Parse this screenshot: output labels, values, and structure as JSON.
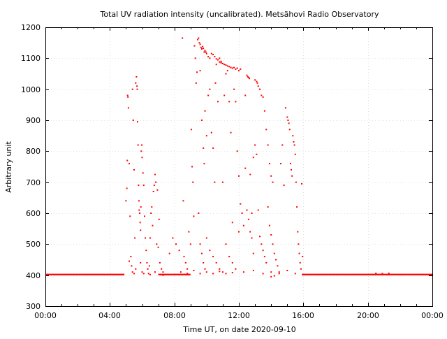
{
  "chart_data": {
    "type": "scatter",
    "title": "Total UV radiation intensity (uncalibrated). Metsähovi Radio Observatory",
    "xlabel": "Time UT, on date 2020-09-10",
    "ylabel": "Arbitrary unit",
    "xlim": [
      "00:00",
      "24:00"
    ],
    "ylim": [
      300,
      1200
    ],
    "grid": true,
    "marker_color": "#ff0000",
    "x_ticks": [
      "00:00",
      "04:00",
      "08:00",
      "12:00",
      "16:00",
      "20:00",
      "00:00"
    ],
    "x_tick_hours": [
      0,
      4,
      8,
      12,
      16,
      20,
      24
    ],
    "y_ticks": [
      "300",
      "400",
      "500",
      "600",
      "700",
      "800",
      "900",
      "1000",
      "1100",
      "1200"
    ],
    "y_tick_values": [
      300,
      400,
      500,
      600,
      700,
      800,
      900,
      1000,
      1100,
      1200
    ],
    "baseline": {
      "value": 402,
      "segments": [
        [
          0.0,
          4.9
        ],
        [
          7.0,
          9.0
        ],
        [
          15.9,
          24.0
        ]
      ]
    },
    "points": [
      [
        5.0,
        640
      ],
      [
        5.05,
        680
      ],
      [
        5.08,
        770
      ],
      [
        5.1,
        980
      ],
      [
        5.12,
        975
      ],
      [
        5.15,
        940
      ],
      [
        5.2,
        760
      ],
      [
        5.25,
        590
      ],
      [
        5.3,
        460
      ],
      [
        5.35,
        430
      ],
      [
        5.4,
        1000
      ],
      [
        5.45,
        900
      ],
      [
        5.5,
        740
      ],
      [
        5.55,
        520
      ],
      [
        5.6,
        1020
      ],
      [
        5.65,
        1040
      ],
      [
        5.68,
        1010
      ],
      [
        5.7,
        1000
      ],
      [
        5.72,
        895
      ],
      [
        5.75,
        820
      ],
      [
        5.78,
        690
      ],
      [
        5.8,
        640
      ],
      [
        5.82,
        610
      ],
      [
        5.85,
        600
      ],
      [
        5.88,
        570
      ],
      [
        5.9,
        545
      ],
      [
        5.92,
        620
      ],
      [
        5.95,
        800
      ],
      [
        5.98,
        820
      ],
      [
        6.0,
        780
      ],
      [
        6.05,
        730
      ],
      [
        6.1,
        690
      ],
      [
        6.15,
        590
      ],
      [
        6.2,
        520
      ],
      [
        6.25,
        480
      ],
      [
        6.3,
        440
      ],
      [
        6.35,
        420
      ],
      [
        6.4,
        405
      ],
      [
        6.5,
        520
      ],
      [
        6.55,
        600
      ],
      [
        6.6,
        620
      ],
      [
        6.65,
        560
      ],
      [
        6.7,
        670
      ],
      [
        6.75,
        690
      ],
      [
        6.8,
        725
      ],
      [
        6.85,
        700
      ],
      [
        6.9,
        500
      ],
      [
        6.95,
        675
      ],
      [
        7.0,
        490
      ],
      [
        7.1,
        440
      ],
      [
        7.2,
        420
      ],
      [
        7.3,
        410
      ],
      [
        5.2,
        445
      ],
      [
        5.4,
        410
      ],
      [
        5.6,
        420
      ],
      [
        5.9,
        440
      ],
      [
        6.1,
        405
      ],
      [
        6.45,
        430
      ],
      [
        6.8,
        410
      ],
      [
        7.05,
        580
      ],
      [
        7.3,
        400
      ],
      [
        7.7,
        470
      ],
      [
        7.9,
        520
      ],
      [
        8.1,
        500
      ],
      [
        8.3,
        480
      ],
      [
        8.5,
        1165
      ],
      [
        8.55,
        640
      ],
      [
        8.6,
        460
      ],
      [
        8.7,
        440
      ],
      [
        8.8,
        420
      ],
      [
        8.9,
        540
      ],
      [
        9.0,
        500
      ],
      [
        9.05,
        870
      ],
      [
        9.1,
        750
      ],
      [
        9.15,
        700
      ],
      [
        9.2,
        590
      ],
      [
        9.25,
        1140
      ],
      [
        9.3,
        1100
      ],
      [
        9.35,
        1020
      ],
      [
        9.4,
        1055
      ],
      [
        9.45,
        1160
      ],
      [
        9.5,
        1165
      ],
      [
        9.55,
        1150
      ],
      [
        9.6,
        1145
      ],
      [
        9.65,
        1135
      ],
      [
        9.7,
        1130
      ],
      [
        9.75,
        1138
      ],
      [
        9.8,
        1132
      ],
      [
        9.85,
        1120
      ],
      [
        9.9,
        1125
      ],
      [
        9.95,
        1120
      ],
      [
        10.0,
        1115
      ],
      [
        10.1,
        1105
      ],
      [
        10.2,
        1100
      ],
      [
        10.3,
        1115
      ],
      [
        10.4,
        1112
      ],
      [
        10.5,
        1105
      ],
      [
        10.6,
        1098
      ],
      [
        10.7,
        1095
      ],
      [
        10.8,
        1088
      ],
      [
        10.9,
        1085
      ],
      [
        11.0,
        1083
      ],
      [
        11.1,
        1080
      ],
      [
        11.2,
        1078
      ],
      [
        11.3,
        1075
      ],
      [
        11.4,
        1073
      ],
      [
        11.5,
        1070
      ],
      [
        11.6,
        1068
      ],
      [
        11.7,
        1070
      ],
      [
        11.8,
        1065
      ],
      [
        11.9,
        1068
      ],
      [
        12.0,
        1060
      ],
      [
        12.1,
        1065
      ],
      [
        9.6,
        1060
      ],
      [
        9.7,
        900
      ],
      [
        9.8,
        810
      ],
      [
        9.85,
        760
      ],
      [
        9.9,
        930
      ],
      [
        10.0,
        850
      ],
      [
        10.1,
        980
      ],
      [
        10.2,
        1000
      ],
      [
        10.3,
        860
      ],
      [
        10.4,
        810
      ],
      [
        10.5,
        700
      ],
      [
        10.55,
        1020
      ],
      [
        10.6,
        1080
      ],
      [
        10.7,
        960
      ],
      [
        10.8,
        1100
      ],
      [
        10.9,
        1090
      ],
      [
        11.0,
        700
      ],
      [
        11.1,
        980
      ],
      [
        11.2,
        1050
      ],
      [
        11.3,
        1060
      ],
      [
        11.4,
        960
      ],
      [
        11.5,
        860
      ],
      [
        11.6,
        570
      ],
      [
        11.7,
        1000
      ],
      [
        11.8,
        960
      ],
      [
        11.9,
        800
      ],
      [
        12.0,
        720
      ],
      [
        9.5,
        600
      ],
      [
        9.6,
        500
      ],
      [
        9.7,
        470
      ],
      [
        9.8,
        440
      ],
      [
        9.9,
        420
      ],
      [
        10.0,
        520
      ],
      [
        10.2,
        480
      ],
      [
        10.4,
        460
      ],
      [
        10.6,
        440
      ],
      [
        10.8,
        420
      ],
      [
        11.0,
        410
      ],
      [
        11.2,
        500
      ],
      [
        11.4,
        460
      ],
      [
        11.6,
        440
      ],
      [
        11.8,
        420
      ],
      [
        12.0,
        540
      ],
      [
        12.1,
        630
      ],
      [
        12.2,
        600
      ],
      [
        12.3,
        560
      ],
      [
        12.4,
        980
      ],
      [
        12.5,
        1045
      ],
      [
        12.55,
        1040
      ],
      [
        12.6,
        1038
      ],
      [
        12.65,
        1035
      ],
      [
        12.7,
        725
      ],
      [
        12.8,
        520
      ],
      [
        12.9,
        470
      ],
      [
        13.0,
        1030
      ],
      [
        13.1,
        1025
      ],
      [
        13.15,
        1020
      ],
      [
        13.2,
        1010
      ],
      [
        13.3,
        1000
      ],
      [
        13.4,
        980
      ],
      [
        13.5,
        975
      ],
      [
        13.6,
        930
      ],
      [
        13.7,
        870
      ],
      [
        13.8,
        820
      ],
      [
        13.9,
        760
      ],
      [
        14.0,
        720
      ],
      [
        14.1,
        700
      ],
      [
        12.4,
        745
      ],
      [
        12.5,
        610
      ],
      [
        12.6,
        580
      ],
      [
        12.7,
        540
      ],
      [
        12.8,
        600
      ],
      [
        12.9,
        780
      ],
      [
        13.0,
        820
      ],
      [
        13.1,
        790
      ],
      [
        13.2,
        610
      ],
      [
        13.3,
        525
      ],
      [
        13.4,
        500
      ],
      [
        13.5,
        480
      ],
      [
        13.6,
        460
      ],
      [
        13.7,
        440
      ],
      [
        13.8,
        620
      ],
      [
        13.9,
        560
      ],
      [
        14.0,
        530
      ],
      [
        14.1,
        500
      ],
      [
        14.2,
        470
      ],
      [
        14.3,
        450
      ],
      [
        14.4,
        430
      ],
      [
        14.5,
        410
      ],
      [
        14.6,
        760
      ],
      [
        14.7,
        820
      ],
      [
        14.8,
        690
      ],
      [
        14.9,
        940
      ],
      [
        15.0,
        910
      ],
      [
        15.05,
        900
      ],
      [
        15.1,
        890
      ],
      [
        15.15,
        870
      ],
      [
        15.2,
        760
      ],
      [
        15.25,
        740
      ],
      [
        15.3,
        720
      ],
      [
        15.35,
        850
      ],
      [
        15.4,
        830
      ],
      [
        15.45,
        820
      ],
      [
        15.5,
        790
      ],
      [
        15.55,
        700
      ],
      [
        15.6,
        620
      ],
      [
        15.65,
        540
      ],
      [
        15.7,
        500
      ],
      [
        15.75,
        470
      ],
      [
        15.8,
        440
      ],
      [
        15.85,
        420
      ],
      [
        15.9,
        695
      ],
      [
        15.95,
        460
      ],
      [
        12.3,
        410
      ],
      [
        12.9,
        415
      ],
      [
        13.5,
        405
      ],
      [
        14.0,
        410
      ],
      [
        14.5,
        405
      ],
      [
        15.0,
        415
      ],
      [
        15.5,
        405
      ],
      [
        8.4,
        410
      ],
      [
        8.8,
        405
      ],
      [
        9.2,
        415
      ],
      [
        9.6,
        405
      ],
      [
        10.0,
        410
      ],
      [
        10.4,
        405
      ],
      [
        10.8,
        412
      ],
      [
        11.2,
        405
      ],
      [
        11.6,
        408
      ],
      [
        5.5,
        405
      ],
      [
        6.0,
        410
      ],
      [
        6.5,
        402
      ],
      [
        14.0,
        395
      ],
      [
        14.2,
        398
      ],
      [
        20.5,
        406
      ],
      [
        20.9,
        405
      ],
      [
        21.3,
        406
      ]
    ]
  }
}
